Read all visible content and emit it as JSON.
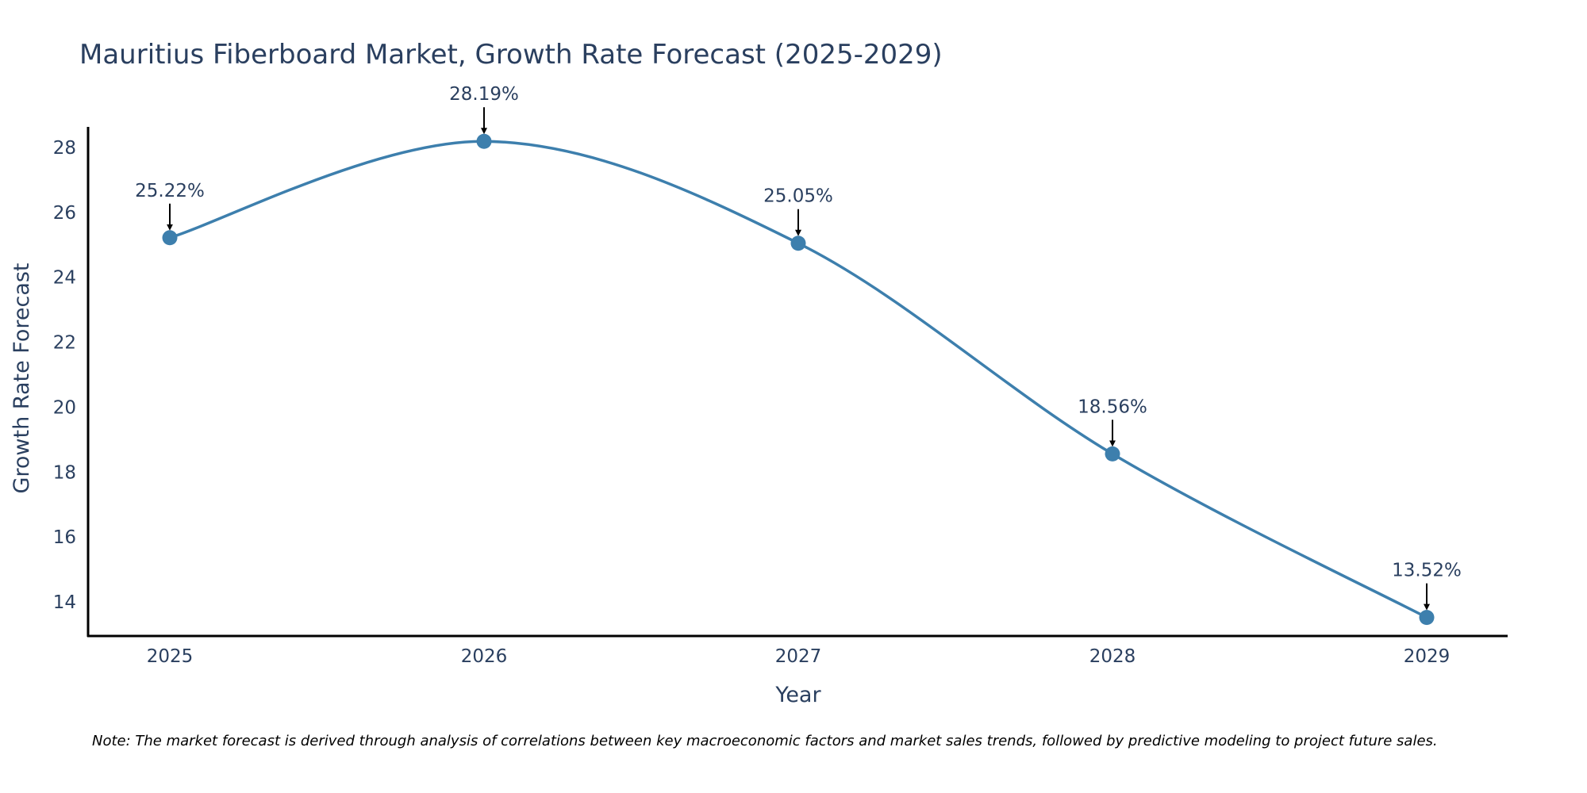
{
  "chart_data": {
    "type": "line",
    "title": "Mauritius Fiberboard Market, Growth Rate Forecast (2025-2029)",
    "xlabel": "Year",
    "ylabel": "Growth Rate Forecast",
    "categories": [
      "2025",
      "2026",
      "2027",
      "2028",
      "2029"
    ],
    "series": [
      {
        "name": "Growth Rate Forecast",
        "values": [
          25.22,
          28.19,
          25.05,
          18.56,
          13.52
        ]
      }
    ],
    "data_labels": [
      "25.22%",
      "28.19%",
      "25.05%",
      "18.56%",
      "13.52%"
    ],
    "y_ticks": [
      14,
      16,
      18,
      20,
      22,
      24,
      26,
      28
    ],
    "ylim": [
      13,
      28.6
    ],
    "grid": false,
    "line_shape": "spline",
    "line_color": "#3d7fad",
    "marker_color": "#3d7fad",
    "note": "Note: The market forecast is derived through analysis of correlations between key macroeconomic factors and market sales trends, followed by predictive modeling to project future sales."
  }
}
